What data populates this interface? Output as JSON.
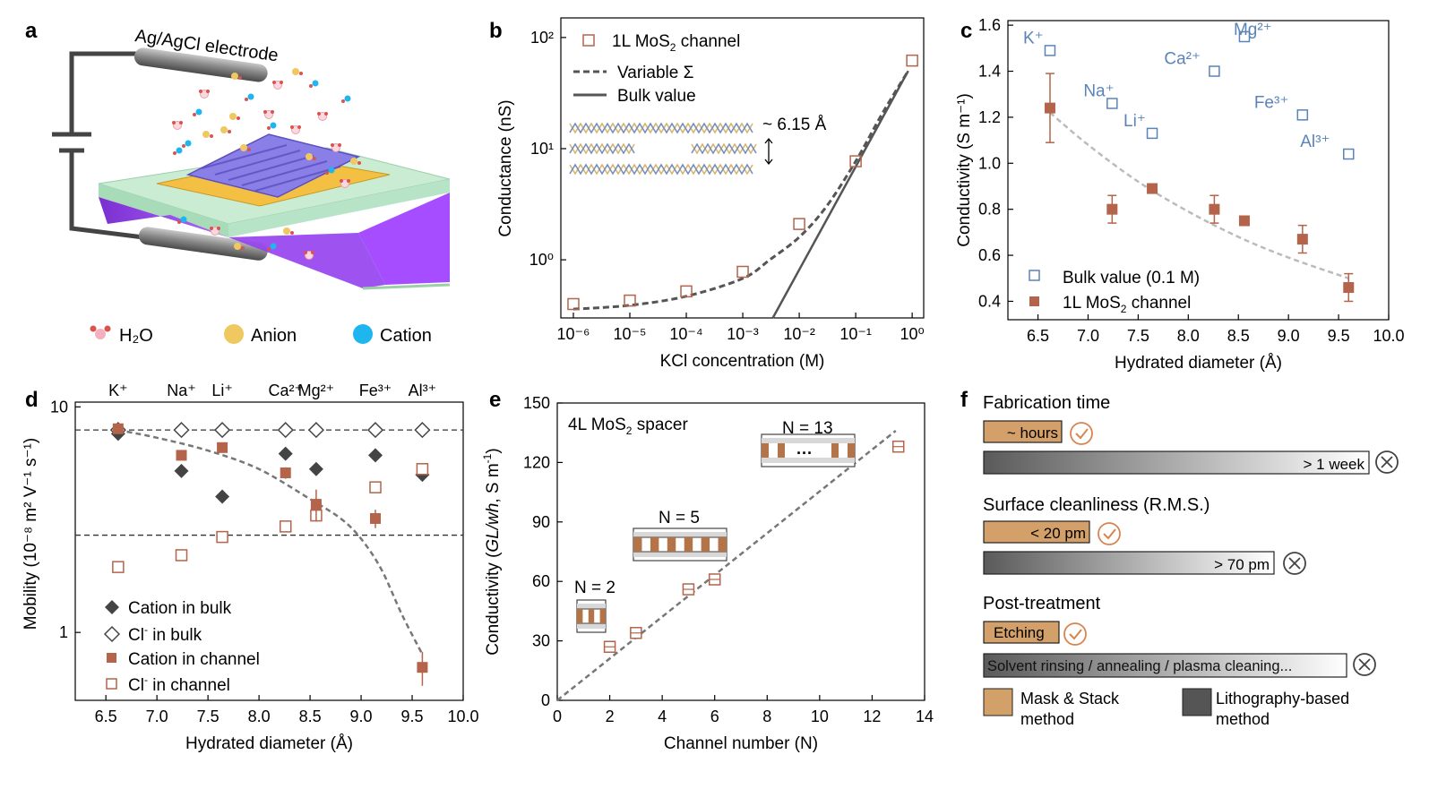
{
  "figure": {
    "panel_labels": [
      "a",
      "b",
      "c",
      "d",
      "e",
      "f"
    ]
  },
  "panel_a": {
    "electrode_label": "Ag/AgCl electrode",
    "legend": [
      "H₂O",
      "Anion",
      "Cation"
    ],
    "colors": {
      "water": "#e8a0aa",
      "anion": "#f0c860",
      "cation": "#1fb6f0",
      "substrate": "#b7e4c7",
      "well": "#a64dff",
      "gold": "#f3c044",
      "channel": "#8a7fe6"
    }
  },
  "panel_b": {
    "legend": {
      "channel": "1L MoS₂ channel",
      "variable": "Variable Σ",
      "bulk": "Bulk value"
    },
    "annotation": "~ 6.15 Å"
  },
  "panel_c": {
    "ion_labels": [
      "K⁺",
      "Na⁺",
      "Li⁺",
      "Ca²⁺",
      "Mg²⁺",
      "Fe³⁺",
      "Al³⁺"
    ],
    "legend": {
      "bulk": "Bulk value (0.1 M)",
      "channel": "1L MoS₂ channel"
    }
  },
  "panel_d": {
    "top_ions": [
      "K⁺",
      "Na⁺",
      "Li⁺",
      "Ca²⁺",
      "Mg²⁺",
      "Fe³⁺",
      "Al³⁺"
    ],
    "legend": [
      "Cation in bulk",
      "Cl⁻ in bulk",
      "Cation in channel",
      "Cl⁻ in channel"
    ]
  },
  "panel_e": {
    "inset_title": "4L MoS₂ spacer",
    "annotations": [
      "N = 2",
      "N = 5",
      "N = 13"
    ],
    "ellipsis": "···"
  },
  "panel_f": {
    "sections": [
      {
        "title": "Fabrication time",
        "good": "~ hours",
        "bad": "> 1 week",
        "good_frac": 0.205,
        "bad_frac": 1.0
      },
      {
        "title": "Surface cleanliness (R.M.S.)",
        "good": "< 20 pm",
        "bad": "> 70 pm",
        "good_frac": 0.27,
        "bad_frac": 0.76
      },
      {
        "title": "Post-treatment",
        "good": "Etching",
        "bad": "Solvent rinsing / annealing / plasma cleaning...",
        "good_frac": 0.2,
        "bad_frac": 0.95
      }
    ],
    "legend": {
      "mask": "Mask & Stack\nmethod",
      "litho": "Lithography-based\nmethod"
    },
    "mask_label_lines": [
      "Mask & Stack",
      "method"
    ],
    "litho_label_lines": [
      "Lithography-based",
      "method"
    ],
    "colors": {
      "good": "#d4a06a",
      "bad_dark": "#555555",
      "check": "#d9844f"
    }
  },
  "chart_data": [
    {
      "id": "b",
      "type": "scatter",
      "title": "",
      "xlabel": "KCl concentration (M)",
      "ylabel": "Conductance (nS)",
      "xscale": "log",
      "yscale": "log",
      "xlim": [
        1e-06,
        1
      ],
      "ylim": [
        0.3,
        150
      ],
      "xticks": [
        "10⁻⁶",
        "10⁻⁵",
        "10⁻⁴",
        "10⁻³",
        "10⁻²",
        "10⁻¹",
        "10⁰"
      ],
      "xtick_values": [
        1e-06,
        1e-05,
        0.0001,
        0.001,
        0.01,
        0.1,
        1
      ],
      "yticks": [
        "10⁰",
        "10¹",
        "10²"
      ],
      "ytick_values": [
        1,
        10,
        100
      ],
      "series": [
        {
          "name": "1L MoS₂ channel",
          "x": [
            1e-06,
            1e-05,
            0.0001,
            0.001,
            0.01,
            0.1,
            1
          ],
          "y": [
            0.4,
            0.43,
            0.52,
            0.78,
            2.1,
            7.7,
            62
          ]
        },
        {
          "name": "Variable Σ",
          "x": [
            1e-06,
            1e-05,
            0.0001,
            0.001,
            0.003,
            0.01,
            0.03,
            0.1,
            0.3,
            0.85
          ],
          "y": [
            0.36,
            0.39,
            0.47,
            0.68,
            1.0,
            1.6,
            3.0,
            7.7,
            21,
            50
          ]
        },
        {
          "name": "Bulk value",
          "x": [
            0.0034,
            0.85
          ],
          "y": [
            0.3,
            50
          ]
        }
      ]
    },
    {
      "id": "c",
      "type": "scatter",
      "xlabel": "Hydrated diameter (Å)",
      "ylabel": "Conductivity (S m⁻¹)",
      "xlim": [
        6.2,
        10.0
      ],
      "ylim": [
        0.3,
        1.6
      ],
      "xticks": [
        "6.5",
        "7.0",
        "7.5",
        "8.0",
        "8.5",
        "9.0",
        "9.5",
        "10.0"
      ],
      "xtick_values": [
        6.5,
        7.0,
        7.5,
        8.0,
        8.5,
        9.0,
        9.5,
        10.0
      ],
      "yticks": [
        "0.4",
        "0.6",
        "0.8",
        "1.0",
        "1.2",
        "1.4",
        "1.6"
      ],
      "ytick_values": [
        0.4,
        0.6,
        0.8,
        1.0,
        1.2,
        1.4,
        1.6
      ],
      "series": [
        {
          "name": "Bulk value (0.1 M)",
          "x": [
            6.62,
            7.24,
            7.64,
            8.26,
            8.56,
            9.14,
            9.6
          ],
          "y": [
            1.49,
            1.26,
            1.13,
            1.4,
            1.55,
            1.21,
            1.04
          ]
        },
        {
          "name": "1L MoS₂ channel",
          "x": [
            6.62,
            7.24,
            7.64,
            8.26,
            8.56,
            9.14,
            9.6
          ],
          "y": [
            1.24,
            0.8,
            0.89,
            0.8,
            0.75,
            0.67,
            0.46
          ],
          "err": [
            0.15,
            0.06,
            0.02,
            0.06,
            0.02,
            0.06,
            0.06
          ]
        },
        {
          "name": "fit",
          "x": [
            6.62,
            7.0,
            7.5,
            8.0,
            8.5,
            9.0,
            9.6
          ],
          "y": [
            1.22,
            1.08,
            0.92,
            0.79,
            0.68,
            0.59,
            0.5
          ]
        }
      ]
    },
    {
      "id": "d",
      "type": "scatter",
      "xlabel": "Hydrated diameter (Å)",
      "ylabel": "Mobility (10⁻⁸ m² V⁻¹ s⁻¹)",
      "yscale": "log",
      "xlim": [
        6.2,
        10.0
      ],
      "ylim": [
        0.5,
        10.5
      ],
      "xticks": [
        "6.5",
        "7.0",
        "7.5",
        "8.0",
        "8.5",
        "9.0",
        "9.5",
        "10.0"
      ],
      "xtick_values": [
        6.5,
        7.0,
        7.5,
        8.0,
        8.5,
        9.0,
        9.5,
        10.0
      ],
      "yticks": [
        "1",
        "10"
      ],
      "ytick_values": [
        1,
        10
      ],
      "hlines": [
        7.9,
        2.7
      ],
      "series": [
        {
          "name": "Cation in bulk",
          "x": [
            6.62,
            7.24,
            7.64,
            8.26,
            8.56,
            9.14,
            9.6
          ],
          "y": [
            7.6,
            5.2,
            4.0,
            6.2,
            5.3,
            6.1,
            5.0
          ]
        },
        {
          "name": "Cl⁻ in bulk",
          "x": [
            6.62,
            7.24,
            7.64,
            8.26,
            8.56,
            9.14,
            9.6
          ],
          "y": [
            7.9,
            7.9,
            7.9,
            7.9,
            7.9,
            7.9,
            7.9
          ]
        },
        {
          "name": "Cation in channel",
          "x": [
            6.62,
            7.24,
            7.64,
            8.26,
            8.56,
            9.14,
            9.6
          ],
          "y": [
            8.0,
            6.1,
            6.6,
            5.1,
            3.7,
            3.2,
            0.7
          ],
          "err": [
            0.3,
            0.3,
            0.3,
            0.3,
            0.6,
            0.3,
            0.12
          ]
        },
        {
          "name": "Cl⁻ in channel",
          "x": [
            6.62,
            7.24,
            7.64,
            8.26,
            8.56,
            9.14,
            9.6
          ],
          "y": [
            1.95,
            2.2,
            2.65,
            2.95,
            3.3,
            4.4,
            5.3
          ]
        },
        {
          "name": "fit",
          "x": [
            6.62,
            7.0,
            7.5,
            8.0,
            8.5,
            8.8,
            9.0,
            9.2,
            9.4,
            9.6
          ],
          "y": [
            7.9,
            7.3,
            6.4,
            5.3,
            3.9,
            3.2,
            2.6,
            1.9,
            1.2,
            0.8
          ]
        }
      ]
    },
    {
      "id": "e",
      "type": "scatter",
      "xlabel": "Channel number (N)",
      "ylabel": "Conductivity (GL/wh, S m⁻¹)",
      "ylabel_parts": [
        "Conductivity (",
        "GL/wh",
        ", S m",
        "-1",
        ")"
      ],
      "xlim": [
        0,
        14
      ],
      "ylim": [
        0,
        150
      ],
      "xticks": [
        "0",
        "2",
        "4",
        "6",
        "8",
        "10",
        "12",
        "14"
      ],
      "xtick_values": [
        0,
        2,
        4,
        6,
        8,
        10,
        12,
        14
      ],
      "yticks": [
        "0",
        "30",
        "60",
        "90",
        "120",
        "150"
      ],
      "ytick_values": [
        0,
        30,
        60,
        90,
        120,
        150
      ],
      "series": [
        {
          "name": "data",
          "x": [
            2,
            3,
            5,
            6,
            13
          ],
          "y": [
            27,
            34,
            56,
            61,
            128
          ]
        },
        {
          "name": "fit",
          "x": [
            0,
            12.9
          ],
          "y": [
            0,
            136
          ]
        }
      ]
    }
  ]
}
